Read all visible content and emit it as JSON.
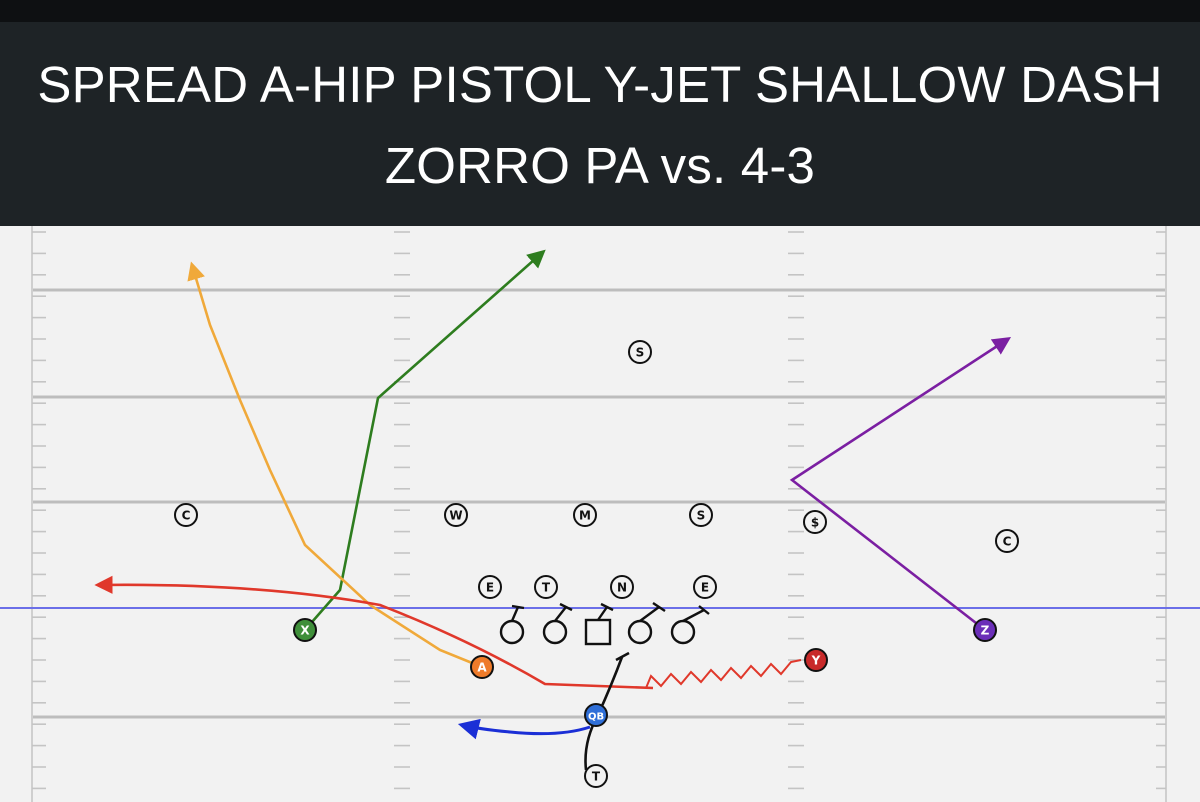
{
  "title": {
    "line1": "SPREAD A-HIP PISTOL Y-JET SHALLOW DASH",
    "line2": "ZORRO PA vs. 4-3"
  },
  "colors": {
    "field": "#f2f2f2",
    "yard_line": "#bdbdbd",
    "line_of_scrimmage": "#6b6fe8",
    "x_route": "#2e7d1f",
    "a_route": "#f0a93a",
    "y_route": "#e0382b",
    "z_route": "#7b1fa2",
    "qb_route": "#1b2fd6",
    "protection": "#111111"
  },
  "offense": [
    {
      "id": "x",
      "label": "X",
      "color": "#3f8f3a"
    },
    {
      "id": "a",
      "label": "A",
      "color": "#ee7b2a"
    },
    {
      "id": "y",
      "label": "Y",
      "color": "#c82a2a"
    },
    {
      "id": "z",
      "label": "Z",
      "color": "#6b2fb8"
    },
    {
      "id": "qb",
      "label": "QB",
      "color": "#2f6fd8"
    },
    {
      "id": "rb",
      "label": "T",
      "color": "#f2f2f2"
    }
  ],
  "defense": [
    {
      "id": "fs",
      "label": "S"
    },
    {
      "id": "cb-left",
      "label": "C"
    },
    {
      "id": "wlb",
      "label": "W"
    },
    {
      "id": "mlb",
      "label": "M"
    },
    {
      "id": "slb",
      "label": "S"
    },
    {
      "id": "ss",
      "label": "$"
    },
    {
      "id": "cb-right",
      "label": "C"
    },
    {
      "id": "de-left",
      "label": "E"
    },
    {
      "id": "dt",
      "label": "T"
    },
    {
      "id": "nt",
      "label": "N"
    },
    {
      "id": "de-right",
      "label": "E"
    }
  ]
}
